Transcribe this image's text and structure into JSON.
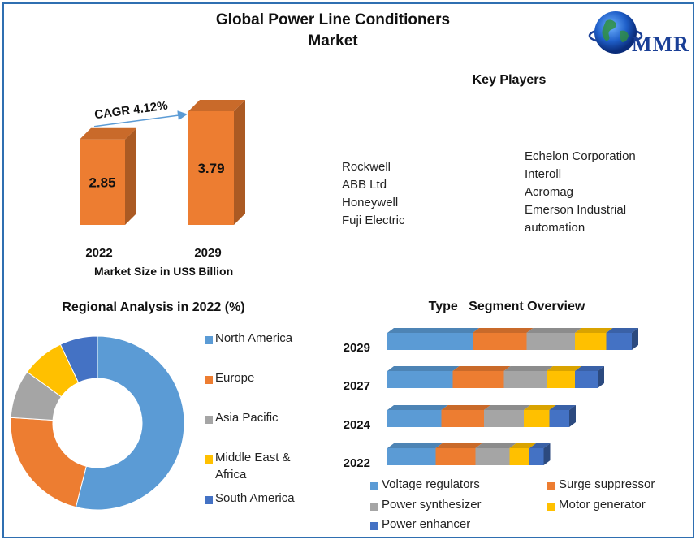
{
  "title_line1": "Global Power Line Conditioners",
  "title_line2": "Market",
  "logo_text": "MMR",
  "key_players": {
    "title": "Key Players",
    "left": [
      "Rockwell",
      "ABB Ltd",
      "Honeywell",
      "Fuji Electric"
    ],
    "right": [
      "Echelon Corporation",
      "Interoll",
      "Acromag",
      "Emerson Industrial",
      "automation"
    ]
  },
  "colors": {
    "orange": "#ed7d31",
    "blue": "#5b9bd5",
    "gray": "#a5a5a5",
    "yellow": "#ffc000",
    "darkblue": "#4472c4",
    "frame": "#2f6fb1"
  },
  "chart_data": [
    {
      "type": "bar",
      "categories": [
        "2022",
        "2029"
      ],
      "values": [
        2.85,
        3.79
      ],
      "value_labels": [
        "2.85",
        "3.79"
      ],
      "xlabel": "Market Size in US$ Billion",
      "annotation": "CAGR 4.12%"
    },
    {
      "type": "pie",
      "title": "Regional Analysis in 2022 (%)",
      "donut": true,
      "labels": [
        "North America",
        "Europe",
        "Asia Pacific",
        "Middle East & Africa",
        "South America"
      ],
      "legend_lines": [
        [
          "North America"
        ],
        [
          "Europe"
        ],
        [
          "Asia Pacific"
        ],
        [
          "Middle East &",
          "Africa"
        ],
        [
          "South America"
        ]
      ],
      "values": [
        54,
        22,
        9,
        8,
        7
      ],
      "colors": [
        "#5b9bd5",
        "#ed7d31",
        "#a5a5a5",
        "#ffc000",
        "#4472c4"
      ],
      "legend_placement": "right"
    },
    {
      "type": "bar",
      "stacked": true,
      "orientation": "horizontal",
      "title": "Type   Segment Overview",
      "categories": [
        "2029",
        "2027",
        "2024",
        "2022"
      ],
      "series": [
        {
          "name": "Voltage regulators",
          "color": "#5b9bd5",
          "values": [
            3.0,
            2.3,
            1.9,
            1.7
          ]
        },
        {
          "name": "Surge suppressor",
          "color": "#ed7d31",
          "values": [
            1.9,
            1.8,
            1.5,
            1.4
          ]
        },
        {
          "name": "Power synthesizer",
          "color": "#a5a5a5",
          "values": [
            1.7,
            1.5,
            1.4,
            1.2
          ]
        },
        {
          "name": "Motor generator",
          "color": "#ffc000",
          "values": [
            1.1,
            1.0,
            0.9,
            0.7
          ]
        },
        {
          "name": "Power enhancer",
          "color": "#4472c4",
          "values": [
            0.9,
            0.8,
            0.7,
            0.5
          ]
        }
      ],
      "legend_placement": "bottom"
    }
  ]
}
